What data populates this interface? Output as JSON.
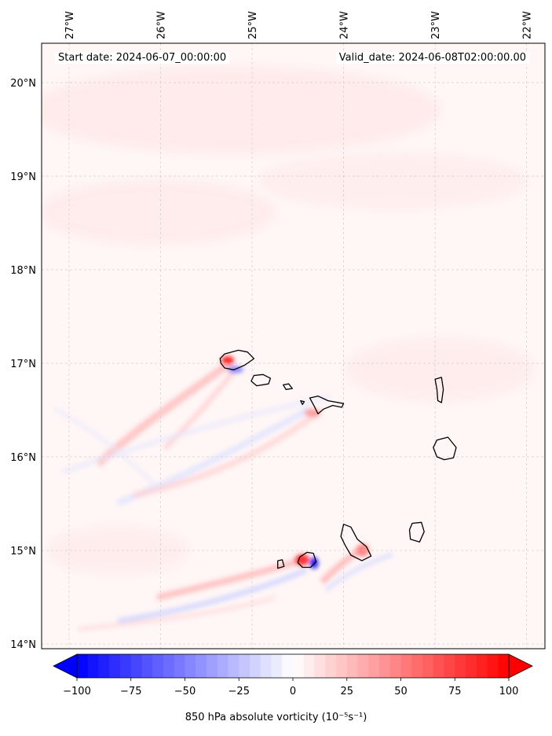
{
  "header": {
    "start_label": "Start date: 2024-06-07_00:00:00",
    "valid_label": "Valid_date: 2024-06-08T02:00:00.00"
  },
  "map": {
    "lon_min": -27.3,
    "lon_max": -21.8,
    "lat_min": 13.95,
    "lat_max": 20.42,
    "lon_ticks": [
      {
        "value": -27,
        "label": "27°W"
      },
      {
        "value": -26,
        "label": "26°W"
      },
      {
        "value": -25,
        "label": "25°W"
      },
      {
        "value": -24,
        "label": "24°W"
      },
      {
        "value": -23,
        "label": "23°W"
      },
      {
        "value": -22,
        "label": "22°W"
      }
    ],
    "lat_ticks": [
      {
        "value": 20,
        "label": "20°N"
      },
      {
        "value": 19,
        "label": "19°N"
      },
      {
        "value": 18,
        "label": "18°N"
      },
      {
        "value": 17,
        "label": "17°N"
      },
      {
        "value": 16,
        "label": "16°N"
      },
      {
        "value": 15,
        "label": "15°N"
      },
      {
        "value": 14,
        "label": "14°N"
      }
    ],
    "islands": [
      [
        [
          -25.35,
          17.05
        ],
        [
          -25.3,
          17.1
        ],
        [
          -25.15,
          17.14
        ],
        [
          -25.05,
          17.12
        ],
        [
          -24.98,
          17.05
        ],
        [
          -25.08,
          16.98
        ],
        [
          -25.2,
          16.93
        ],
        [
          -25.3,
          16.95
        ],
        [
          -25.34,
          17.0
        ]
      ],
      [
        [
          -24.98,
          16.87
        ],
        [
          -24.88,
          16.88
        ],
        [
          -24.8,
          16.84
        ],
        [
          -24.82,
          16.78
        ],
        [
          -24.95,
          16.76
        ],
        [
          -25.01,
          16.81
        ]
      ],
      [
        [
          -24.66,
          16.77
        ],
        [
          -24.6,
          16.78
        ],
        [
          -24.56,
          16.73
        ],
        [
          -24.63,
          16.72
        ]
      ],
      [
        [
          -24.47,
          16.6
        ],
        [
          -24.43,
          16.59
        ],
        [
          -24.45,
          16.56
        ]
      ],
      [
        [
          -24.37,
          16.63
        ],
        [
          -24.28,
          16.65
        ],
        [
          -24.17,
          16.6
        ],
        [
          -24.0,
          16.57
        ],
        [
          -24.02,
          16.53
        ],
        [
          -24.12,
          16.55
        ],
        [
          -24.22,
          16.51
        ],
        [
          -24.28,
          16.46
        ],
        [
          -24.32,
          16.54
        ]
      ],
      [
        [
          -23.0,
          16.83
        ],
        [
          -22.93,
          16.85
        ],
        [
          -22.91,
          16.72
        ],
        [
          -22.93,
          16.58
        ],
        [
          -22.97,
          16.6
        ],
        [
          -22.98,
          16.72
        ]
      ],
      [
        [
          -22.98,
          16.18
        ],
        [
          -22.86,
          16.21
        ],
        [
          -22.77,
          16.1
        ],
        [
          -22.8,
          15.99
        ],
        [
          -22.9,
          15.97
        ],
        [
          -22.98,
          16.0
        ],
        [
          -23.02,
          16.1
        ]
      ],
      [
        [
          -24.0,
          15.28
        ],
        [
          -23.92,
          15.25
        ],
        [
          -23.85,
          15.12
        ],
        [
          -23.75,
          15.04
        ],
        [
          -23.7,
          14.94
        ],
        [
          -23.8,
          14.89
        ],
        [
          -23.92,
          14.95
        ],
        [
          -23.98,
          15.05
        ],
        [
          -24.03,
          15.15
        ]
      ],
      [
        [
          -23.25,
          15.29
        ],
        [
          -23.15,
          15.3
        ],
        [
          -23.12,
          15.2
        ],
        [
          -23.17,
          15.09
        ],
        [
          -23.27,
          15.12
        ],
        [
          -23.28,
          15.22
        ]
      ],
      [
        [
          -24.72,
          14.89
        ],
        [
          -24.67,
          14.9
        ],
        [
          -24.65,
          14.83
        ],
        [
          -24.72,
          14.81
        ]
      ],
      [
        [
          -24.48,
          14.93
        ],
        [
          -24.4,
          14.98
        ],
        [
          -24.33,
          14.97
        ],
        [
          -24.3,
          14.88
        ],
        [
          -24.36,
          14.82
        ],
        [
          -24.45,
          14.82
        ],
        [
          -24.5,
          14.87
        ]
      ]
    ]
  },
  "colorbar": {
    "vmin": -100,
    "vmax": 100,
    "ticks": [
      -100,
      -75,
      -50,
      -25,
      0,
      25,
      50,
      75,
      100
    ],
    "tick_labels": [
      "−100",
      "−75",
      "−50",
      "−25",
      "0",
      "25",
      "50",
      "75",
      "100"
    ],
    "label": "850 hPa absolute vorticity (10⁻⁵s⁻¹)",
    "neg_color": "#0000ff",
    "pos_color": "#ff0000"
  }
}
